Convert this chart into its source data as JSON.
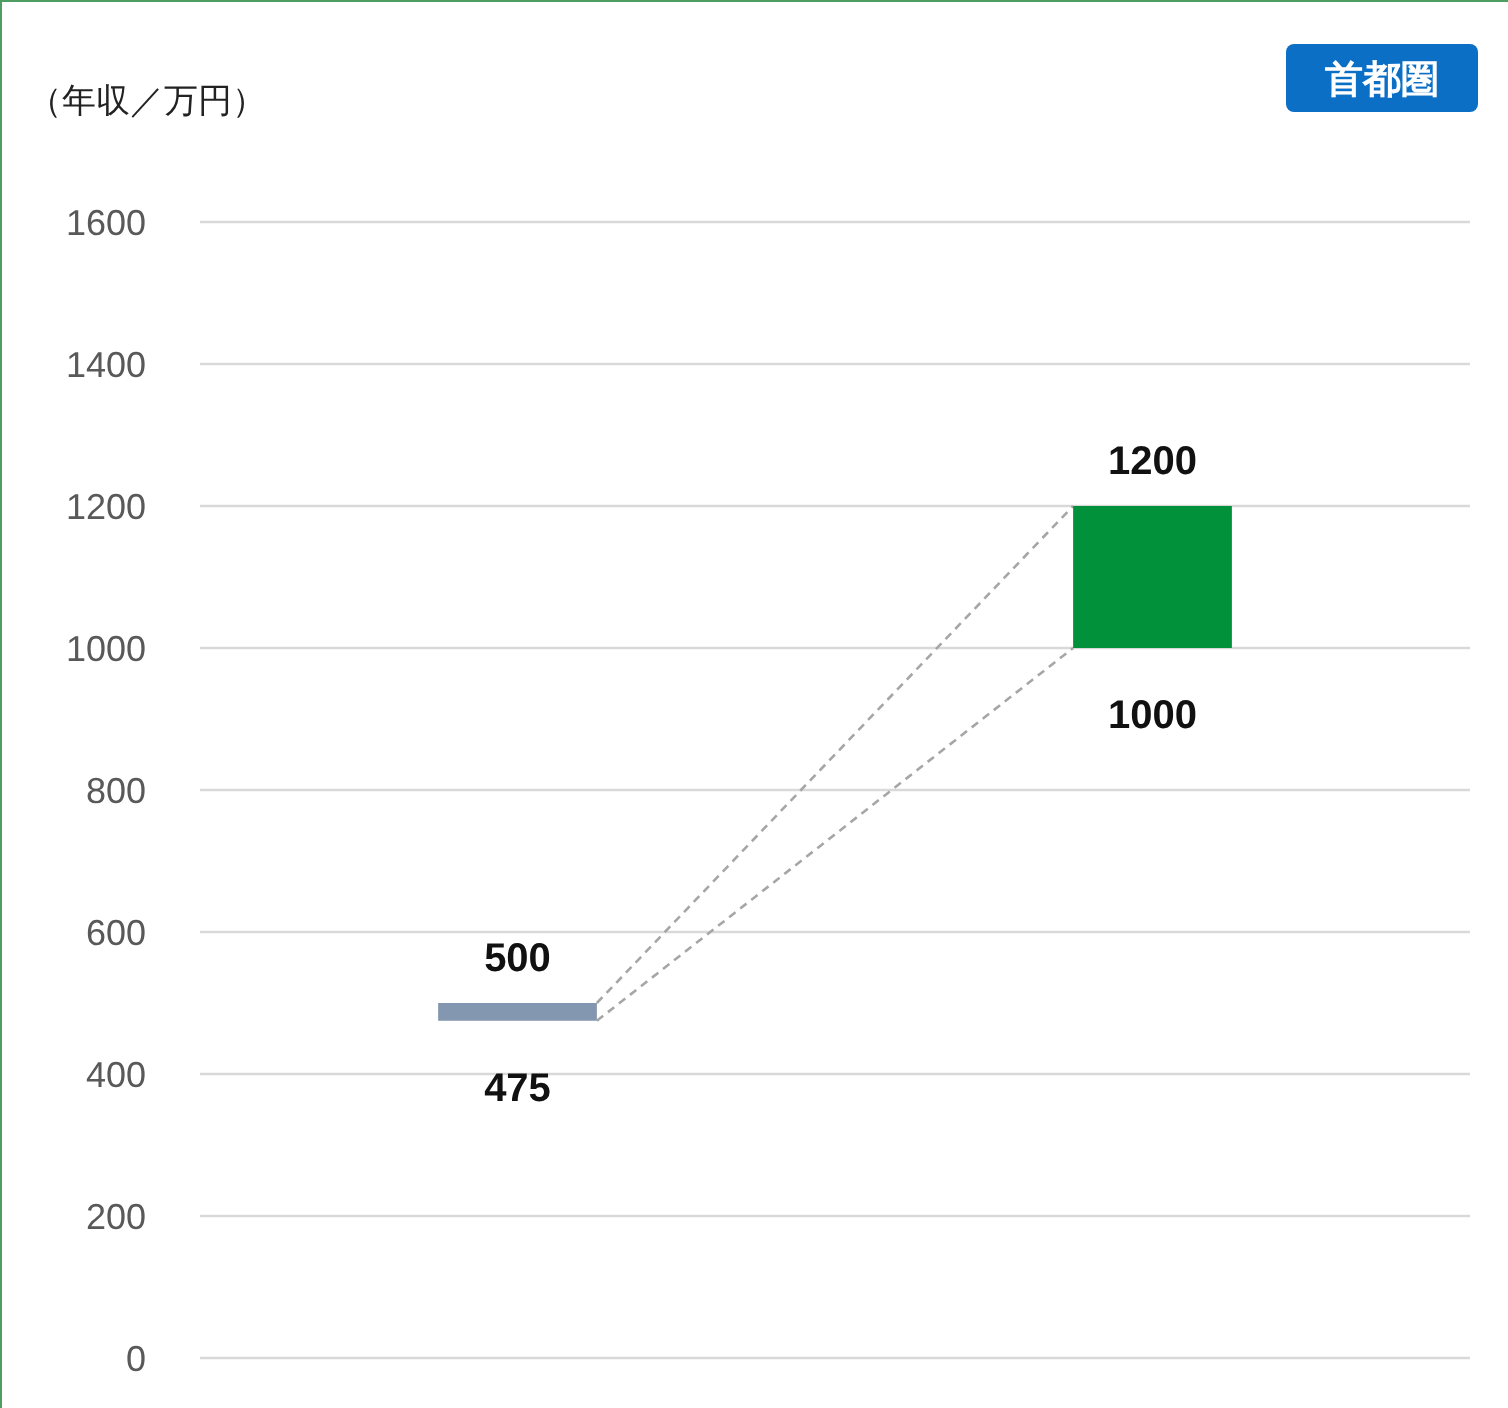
{
  "chart_data": {
    "type": "bar",
    "title": "首都圏",
    "ylabel": "（年収／万円）",
    "categories": [
      null,
      null
    ],
    "base": [
      475,
      1000
    ],
    "values": [
      25,
      200
    ],
    "colors": [
      "#8497b0",
      "#00913a"
    ],
    "value_labels": [
      "500",
      "1200"
    ],
    "annotations": [
      {
        "text": "475",
        "y": 475
      },
      {
        "text": "1000",
        "y": 1000
      }
    ],
    "ylim": [
      0,
      1600
    ],
    "yticks": [
      0,
      200,
      400,
      600,
      800,
      1000,
      1200,
      1400,
      1600
    ],
    "grid": "y"
  }
}
